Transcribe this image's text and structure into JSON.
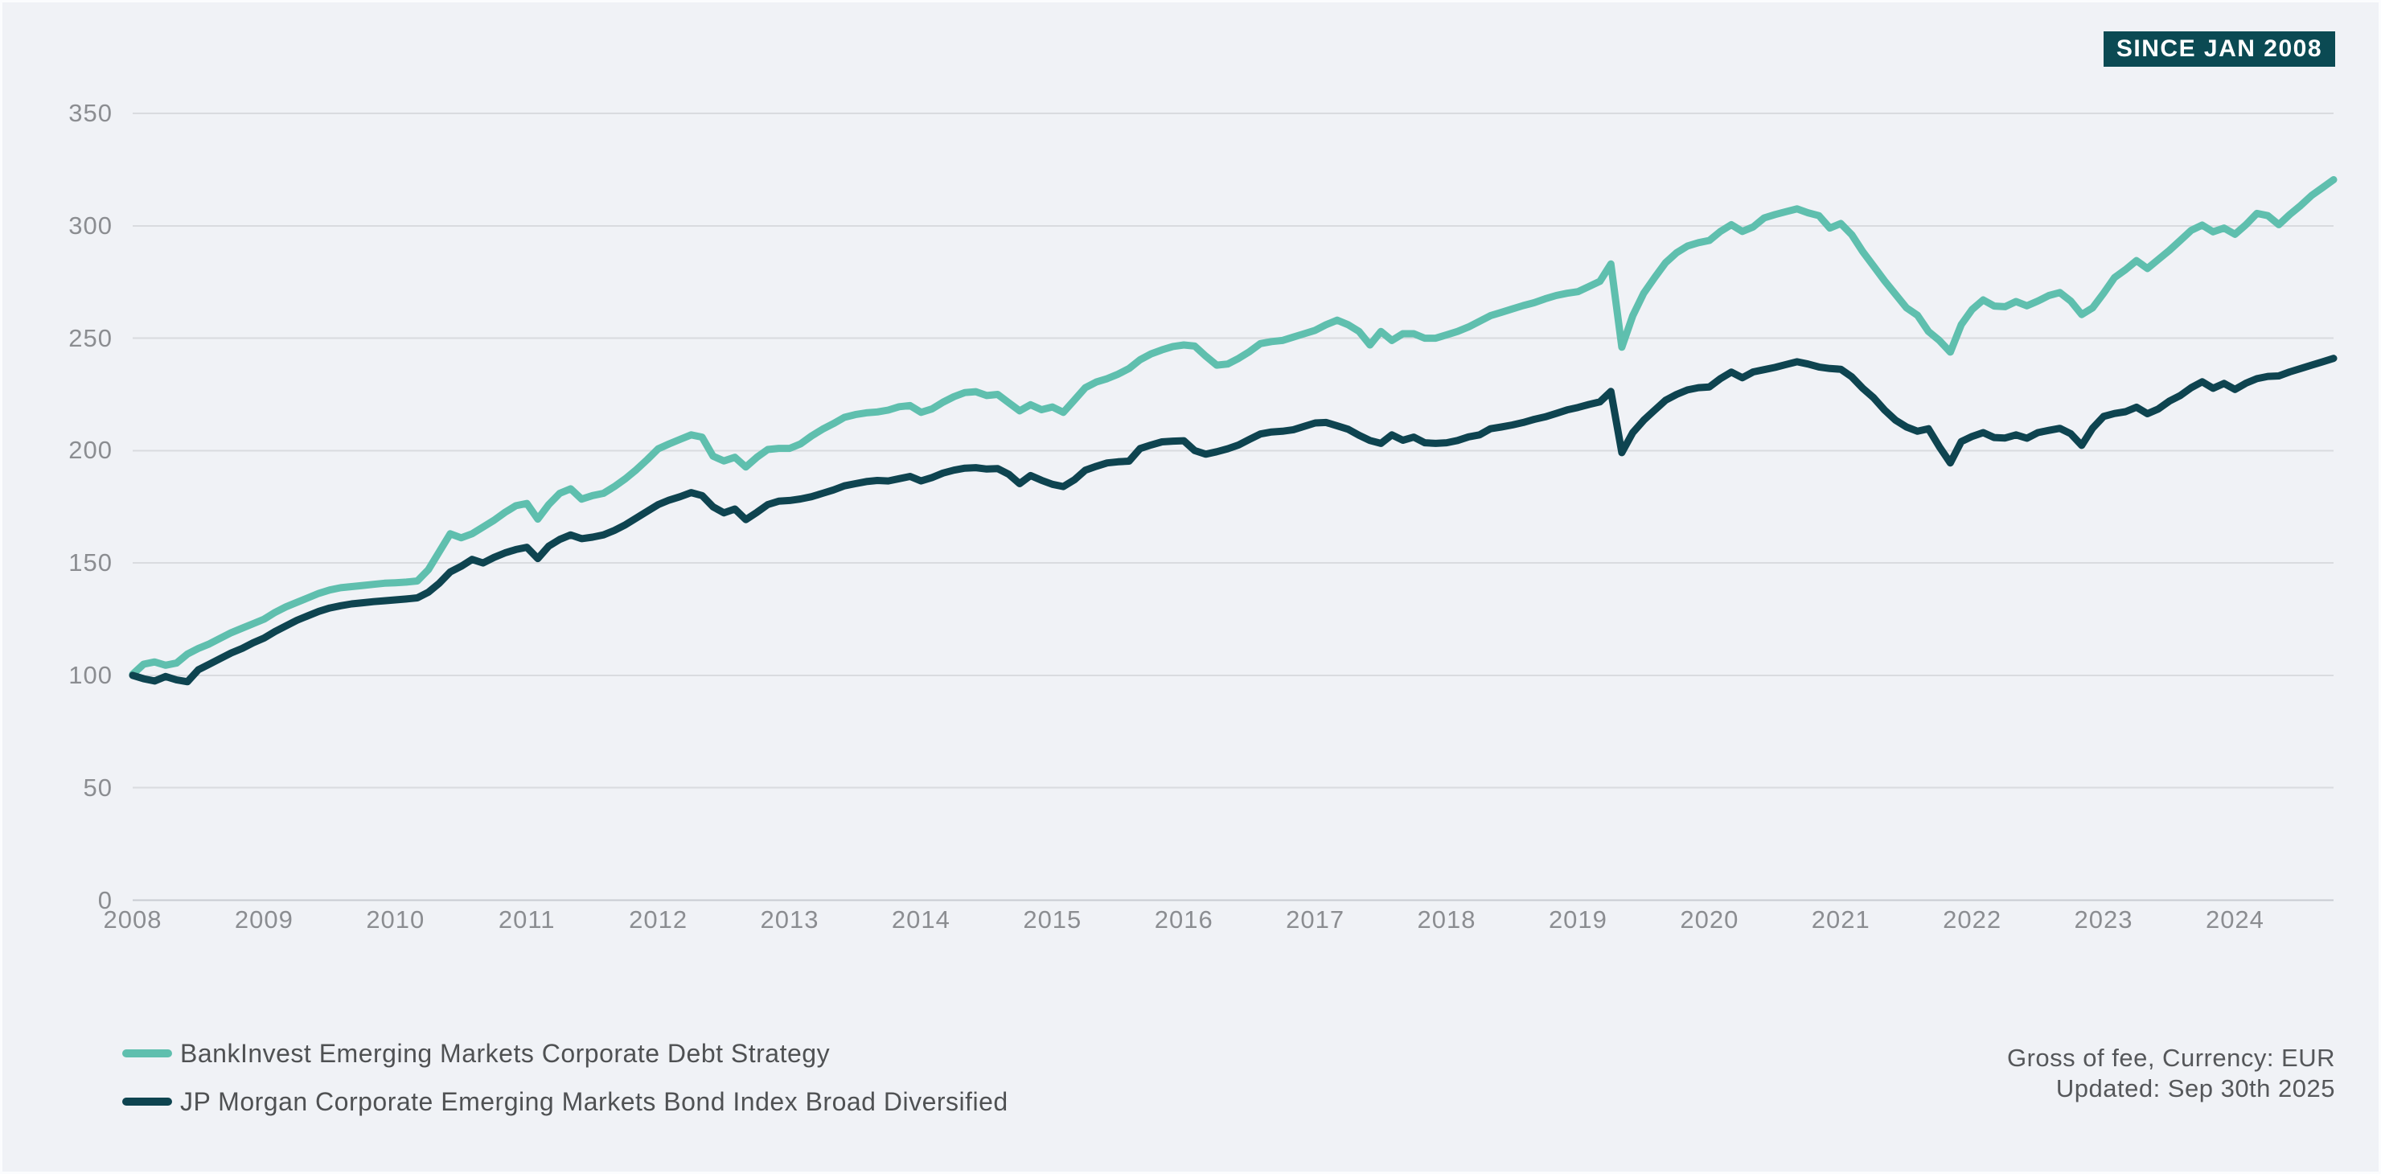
{
  "badge": {
    "label": "SINCE JAN 2008",
    "bg_color": "#0b4a53",
    "text_color": "#ffffff"
  },
  "footnote": {
    "line1": "Gross of fee, Currency: EUR",
    "line2": "Updated: Sep 30th 2025"
  },
  "legend": {
    "items": [
      {
        "label": "BankInvest Emerging Markets Corporate Debt Strategy",
        "color": "#5fbfae"
      },
      {
        "label": "JP Morgan Corporate Emerging Markets Bond Index Broad Diversified",
        "color": "#0e4450"
      }
    ]
  },
  "chart_data": {
    "type": "line",
    "title": "",
    "xlabel": "",
    "ylabel": "",
    "ylim": [
      0,
      350
    ],
    "y_ticks": [
      0,
      50,
      100,
      150,
      200,
      250,
      300,
      350
    ],
    "x_tick_labels": [
      "2008",
      "2009",
      "2010",
      "2011",
      "2012",
      "2013",
      "2014",
      "2015",
      "2016",
      "2017",
      "2018",
      "2019",
      "2020",
      "2021",
      "2022",
      "2023",
      "2024"
    ],
    "x_tick_month_indices": [
      0,
      12,
      24,
      36,
      48,
      60,
      72,
      84,
      96,
      108,
      120,
      132,
      144,
      156,
      168,
      180,
      192
    ],
    "x_start": "Jan 2008",
    "x_index_unit": "month",
    "grid": "horizontal",
    "legend_position": "bottom-left",
    "background_color": "#f0f2f6",
    "gridline_color": "#d9dbdf",
    "series": [
      {
        "name": "BankInvest Emerging Markets Corporate Debt Strategy",
        "color": "#5fbfae",
        "values": [
          100.5,
          105,
          106,
          104.5,
          105.5,
          109.5,
          112,
          114,
          116.5,
          119,
          121,
          123,
          125,
          128,
          130.5,
          132.5,
          134.5,
          136.5,
          138,
          139,
          139.5,
          140,
          140.5,
          141,
          141.2,
          141.5,
          142,
          147,
          155,
          163,
          161.2,
          163,
          166,
          169,
          172.5,
          175.5,
          176.5,
          169.5,
          176,
          181,
          183,
          178.4,
          180,
          181,
          184,
          187.5,
          191.5,
          196,
          200.8,
          203,
          205,
          207,
          206,
          197.5,
          195.4,
          197,
          192.7,
          197,
          200.5,
          201,
          201,
          203,
          206.5,
          209.5,
          212,
          214.8,
          216,
          216.8,
          217.2,
          218,
          219.5,
          220,
          217,
          218.5,
          221.5,
          224,
          225.8,
          226.2,
          224.5,
          225,
          221.3,
          217.7,
          220.4,
          218.2,
          219.4,
          217,
          222.5,
          228,
          230.5,
          232,
          234,
          236.5,
          240.4,
          243,
          244.8,
          246.3,
          247,
          246.5,
          242,
          238,
          238.5,
          241,
          244,
          247.6,
          248.5,
          249,
          250.5,
          252,
          253.5,
          256,
          258,
          256,
          253,
          247,
          253,
          249,
          252,
          252,
          250,
          250,
          251.5,
          253,
          255,
          257.5,
          260,
          261.5,
          263,
          264.5,
          265.8,
          267.5,
          269,
          270,
          270.7,
          273,
          275.3,
          283,
          246,
          260,
          270,
          277,
          283.6,
          288,
          291,
          292.5,
          293.5,
          297.5,
          300.5,
          297.5,
          299.5,
          303.5,
          305,
          306.3,
          307.5,
          305.8,
          304.5,
          299,
          301,
          296,
          288.5,
          282,
          275.5,
          269.5,
          263.5,
          260.2,
          253,
          249,
          243.8,
          256,
          262.8,
          267,
          264.3,
          264,
          266.3,
          264.4,
          266.5,
          269,
          270.3,
          266.5,
          260.5,
          263.5,
          270,
          277,
          280.5,
          284.5,
          281,
          285,
          289,
          293.5,
          298,
          300.3,
          297.3,
          299,
          296.2,
          300.5,
          305.5,
          304.5,
          300.5,
          305,
          309,
          313.5,
          317,
          320.5
        ]
      },
      {
        "name": "JP Morgan Corporate Emerging Markets Bond Index Broad Diversified",
        "color": "#0e4450",
        "values": [
          100,
          98.5,
          97.5,
          99.5,
          98,
          97.2,
          102.5,
          105,
          107.5,
          110,
          112,
          114.5,
          116.6,
          119.5,
          122,
          124.5,
          126.5,
          128.5,
          130,
          131,
          131.8,
          132.3,
          132.8,
          133.2,
          133.6,
          134,
          134.5,
          137,
          141,
          146,
          148.5,
          151.6,
          150,
          152.5,
          154.5,
          156,
          157,
          152,
          157.5,
          160.5,
          162.5,
          160.8,
          161.5,
          162.5,
          164.5,
          167,
          170,
          173,
          176,
          178,
          179.5,
          181.3,
          180,
          175,
          172.3,
          174,
          169.3,
          172.5,
          176,
          177.5,
          177.8,
          178.5,
          179.5,
          181,
          182.5,
          184.3,
          185.3,
          186.2,
          186.7,
          186.5,
          187.5,
          188.5,
          186.5,
          188,
          190,
          191.3,
          192.2,
          192.4,
          191.8,
          192,
          189.5,
          185.3,
          188.9,
          186.8,
          185,
          184,
          187,
          191.3,
          193,
          194.5,
          195,
          195.3,
          200.9,
          202.5,
          203.9,
          204.2,
          204.4,
          200,
          198.4,
          199.5,
          200.8,
          202.5,
          205,
          207.4,
          208.3,
          208.6,
          209.3,
          210.8,
          212.3,
          212.5,
          211,
          209.5,
          206.8,
          204.5,
          203.2,
          207,
          204.6,
          206,
          203.5,
          203.2,
          203.5,
          204.5,
          206.1,
          207,
          209.7,
          210.5,
          211.4,
          212.5,
          213.9,
          215,
          216.5,
          218.1,
          219.2,
          220.5,
          221.7,
          226.3,
          199.1,
          208,
          213.5,
          218,
          222.4,
          225,
          227,
          228,
          228.3,
          232,
          234.9,
          232.4,
          235,
          236,
          237,
          238.3,
          239.5,
          238.5,
          237.2,
          236.5,
          236.2,
          232.8,
          227.7,
          223.5,
          218,
          213.5,
          210.5,
          208.6,
          209.7,
          201.7,
          194.5,
          204,
          206.3,
          208,
          205.8,
          205.6,
          207,
          205.5,
          208,
          209,
          209.9,
          207.5,
          202.3,
          210,
          215.2,
          216.5,
          217.3,
          219.3,
          216.4,
          218.5,
          222,
          224.5,
          228,
          230.6,
          227.7,
          229.9,
          227.2,
          230,
          232,
          233,
          233.2,
          235,
          236.5,
          238,
          239.5,
          241
        ]
      }
    ]
  }
}
